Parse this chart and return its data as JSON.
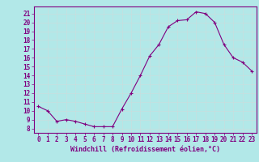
{
  "x": [
    0,
    1,
    2,
    3,
    4,
    5,
    6,
    7,
    8,
    9,
    10,
    11,
    12,
    13,
    14,
    15,
    16,
    17,
    18,
    19,
    20,
    21,
    22,
    23
  ],
  "y": [
    10.5,
    10.0,
    8.8,
    9.0,
    8.8,
    8.5,
    8.2,
    8.2,
    8.2,
    10.2,
    12.0,
    14.0,
    16.2,
    17.5,
    19.5,
    20.2,
    20.3,
    21.2,
    21.0,
    20.0,
    17.5,
    16.0,
    15.5,
    14.5
  ],
  "xlabel": "Windchill (Refroidissement éolien,°C)",
  "xlim": [
    -0.5,
    23.5
  ],
  "ylim": [
    7.5,
    21.8
  ],
  "yticks": [
    8,
    9,
    10,
    11,
    12,
    13,
    14,
    15,
    16,
    17,
    18,
    19,
    20,
    21
  ],
  "xticks": [
    0,
    1,
    2,
    3,
    4,
    5,
    6,
    7,
    8,
    9,
    10,
    11,
    12,
    13,
    14,
    15,
    16,
    17,
    18,
    19,
    20,
    21,
    22,
    23
  ],
  "line_color": "#800080",
  "marker_color": "#800080",
  "bg_color": "#b2e8e8",
  "grid_color": "#c8dede",
  "tick_label_fontsize": 5.5,
  "xlabel_fontsize": 6.0
}
